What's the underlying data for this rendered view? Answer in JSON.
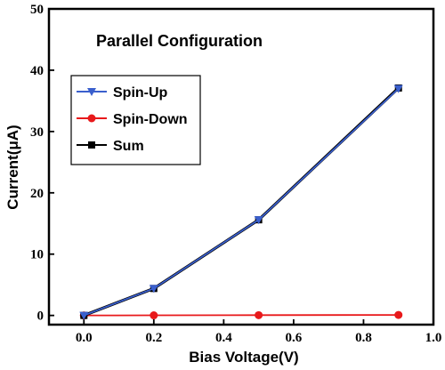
{
  "chart_data": {
    "type": "line",
    "title": "Parallel Configuration",
    "xlabel": "Bias Voltage(V)",
    "ylabel": "Current(μA)",
    "xlim": [
      -0.1,
      1.0
    ],
    "ylim": [
      -1.5,
      50
    ],
    "xticks": [
      "0.0",
      "0.2",
      "0.4",
      "0.6",
      "0.8",
      "1.0"
    ],
    "yticks": [
      "0",
      "10",
      "20",
      "30",
      "40",
      "50"
    ],
    "grid": false,
    "legend_position": "left",
    "series": [
      {
        "name": "Spin-Up",
        "x": [
          0.0,
          0.2,
          0.5,
          0.9
        ],
        "y": [
          0,
          4.4,
          15.6,
          37.0
        ],
        "color": "#3a5fcd",
        "marker": "triangle-down"
      },
      {
        "name": "Spin-Down",
        "x": [
          0.0,
          0.2,
          0.5,
          0.9
        ],
        "y": [
          0,
          0.02,
          0.05,
          0.08
        ],
        "color": "#e8191b",
        "marker": "circle"
      },
      {
        "name": "Sum",
        "x": [
          0.0,
          0.2,
          0.5,
          0.9
        ],
        "y": [
          0,
          4.4,
          15.6,
          37.1
        ],
        "color": "#000000",
        "marker": "square"
      }
    ]
  }
}
